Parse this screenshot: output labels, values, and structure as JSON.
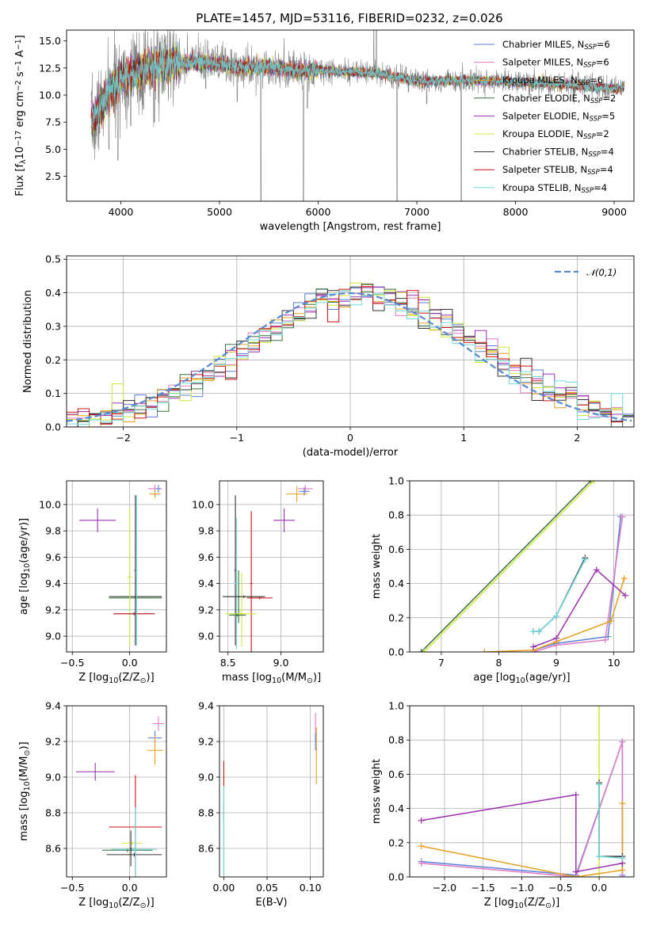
{
  "figure": {
    "title": "PLATE=1457, MJD=53116, FIBERID=0232, z=0.026"
  },
  "series": [
    {
      "name": "Chabrier MILES",
      "nssp": "6",
      "color": "#5b80d8"
    },
    {
      "name": "Salpeter MILES",
      "nssp": "6",
      "color": "#e07ac4"
    },
    {
      "name": "Kroupa MILES",
      "nssp": "6",
      "color": "#e6a020"
    },
    {
      "name": "Chabrier ELODIE",
      "nssp": "2",
      "color": "#3a6e3a"
    },
    {
      "name": "Salpeter ELODIE",
      "nssp": "5",
      "color": "#9a32b0"
    },
    {
      "name": "Kroupa ELODIE",
      "nssp": "2",
      "color": "#cce83a"
    },
    {
      "name": "Chabrier STELIB",
      "nssp": "4",
      "color": "#333333"
    },
    {
      "name": "Salpeter STELIB",
      "nssp": "4",
      "color": "#c81010"
    },
    {
      "name": "Kroupa STELIB",
      "nssp": "4",
      "color": "#70d8dc"
    }
  ],
  "chart_data": [
    {
      "id": "spectrum",
      "type": "line",
      "xlabel": "wavelength [Angstrom, rest frame]",
      "ylabel_parts": [
        "Flux [f",
        "λ",
        "10",
        "−17",
        " erg cm",
        "−2",
        " s",
        "−1",
        " A",
        "−1",
        "]"
      ],
      "xlim": [
        3450,
        9200
      ],
      "ylim": [
        0.2,
        16
      ],
      "xticks": [
        4000,
        5000,
        6000,
        7000,
        8000,
        9000
      ],
      "yticks": [
        2.5,
        5.0,
        7.5,
        10.0,
        12.5,
        15.0
      ],
      "ytick_labels": [
        "2.5",
        "5.0",
        "7.5",
        "10.0",
        "12.5",
        "15.0"
      ],
      "legend_suffix": "SSP",
      "legend_position": "upper right",
      "data_color": "#808080",
      "continuum": [
        [
          3700,
          7.4
        ],
        [
          3800,
          9.0
        ],
        [
          3900,
          10.5
        ],
        [
          4000,
          11.6
        ],
        [
          4200,
          12.3
        ],
        [
          4400,
          12.8
        ],
        [
          4600,
          13.0
        ],
        [
          4800,
          13.0
        ],
        [
          5000,
          12.9
        ],
        [
          5200,
          12.6
        ],
        [
          5500,
          12.6
        ],
        [
          5800,
          12.3
        ],
        [
          6000,
          12.3
        ],
        [
          6300,
          12.1
        ],
        [
          6600,
          12.0
        ],
        [
          7000,
          11.3
        ],
        [
          7300,
          11.3
        ],
        [
          7500,
          11.4
        ],
        [
          8000,
          11.2
        ],
        [
          8500,
          11.0
        ],
        [
          9000,
          10.6
        ],
        [
          9100,
          10.7
        ]
      ],
      "spikes": [
        [
          3730,
          6.6
        ],
        [
          3880,
          5.0
        ],
        [
          3970,
          4.0
        ],
        [
          4100,
          7.2
        ],
        [
          4230,
          8.7
        ],
        [
          4340,
          7.5
        ],
        [
          4860,
          10.6
        ],
        [
          5180,
          9.4
        ],
        [
          5420,
          0.2
        ],
        [
          5850,
          0.2
        ],
        [
          5890,
          8.8
        ],
        [
          6563,
          16.0
        ],
        [
          6590,
          16.0
        ],
        [
          6800,
          0.2
        ],
        [
          7100,
          9.2
        ],
        [
          7450,
          0.2
        ]
      ]
    },
    {
      "id": "residuals",
      "type": "histogram",
      "xlabel": "(data-model)/error",
      "ylabel": "Normed distribution",
      "xlim": [
        -2.5,
        2.5
      ],
      "ylim": [
        0,
        0.51
      ],
      "xticks": [
        -2,
        -1,
        0,
        1,
        2
      ],
      "xtick_labels": [
        "−2",
        "−1",
        "0",
        "1",
        "2"
      ],
      "yticks": [
        0,
        0.1,
        0.2,
        0.3,
        0.4,
        0.5
      ],
      "ytick_labels": [
        "0.0",
        "0.1",
        "0.2",
        "0.3",
        "0.4",
        "0.5"
      ],
      "bin_width": 0.1,
      "reference_curve": {
        "name": "𝒩(0,1)",
        "mean": 0,
        "sigma": 1,
        "color": "#5b8bd0"
      },
      "legend_position": "upper right"
    },
    {
      "id": "age_vs_z",
      "type": "errorbar",
      "xlabel_parts": [
        "Z [log",
        "10",
        "(Z/Z",
        "⊙",
        ")]"
      ],
      "ylabel_parts": [
        "age  [log",
        "10",
        "(age/yr)]"
      ],
      "xlim": [
        -0.55,
        0.32
      ],
      "ylim": [
        8.88,
        10.18
      ],
      "xticks": [
        -0.5,
        0.0
      ],
      "xtick_labels": [
        "−0.5",
        "0.0"
      ],
      "yticks": [
        9.0,
        9.2,
        9.4,
        9.6,
        9.8,
        10.0
      ],
      "ytick_labels": [
        "9.0",
        "9.2",
        "9.4",
        "9.6",
        "9.8",
        "10.0"
      ],
      "points": [
        {
          "series": 4,
          "x": -0.28,
          "xerr": 0.16,
          "y": 9.88,
          "yerr": 0.09
        },
        {
          "series": 1,
          "x": 0.22,
          "xerr": 0.06,
          "y": 10.12,
          "yerr": 0.03
        },
        {
          "series": 2,
          "x": 0.22,
          "xerr": 0.05,
          "y": 10.08,
          "yerr": 0.03
        },
        {
          "series": 0,
          "x": 0.25,
          "xerr": 0.02,
          "y": 10.12,
          "yerr": 0.03
        },
        {
          "series": 6,
          "x": 0.05,
          "xerr": 0.23,
          "y": 9.3,
          "yerr": 0.01
        },
        {
          "series": 3,
          "x": 0.05,
          "xerr": 0.23,
          "y": 9.29,
          "yerr": 0.01
        },
        {
          "series": 5,
          "x": 0.0,
          "xerr": 0.02,
          "y": 9.45,
          "yerr": 0.52
        },
        {
          "series": 8,
          "x": 0.03,
          "xerr": 0.17,
          "y": 9.17,
          "yerr": 0.01
        },
        {
          "series": 7,
          "x": 0.04,
          "xerr": 0.18,
          "y": 9.17,
          "yerr": 0.01
        },
        {
          "series": 6,
          "x": 0.05,
          "xerr": 0.01,
          "y": 9.5,
          "yerr": 0.57
        },
        {
          "series": 8,
          "x": 0.06,
          "xerr": 0.01,
          "y": 9.5,
          "yerr": 0.57
        }
      ]
    },
    {
      "id": "age_vs_mass",
      "type": "errorbar",
      "xlabel_parts": [
        "mass [log",
        "10",
        "(M/M",
        "⊙",
        ")]"
      ],
      "ylabel_parts": [],
      "xlim": [
        8.42,
        9.4
      ],
      "ylim": [
        8.88,
        10.18
      ],
      "xticks": [
        8.5,
        9.0
      ],
      "xtick_labels": [
        "8.5",
        "9.0"
      ],
      "yticks": [
        9.0,
        9.2,
        9.4,
        9.6,
        9.8,
        10.0
      ],
      "ytick_labels": [
        "9.0",
        "9.2",
        "9.4",
        "9.6",
        "9.8",
        "10.0"
      ],
      "points": [
        {
          "series": 4,
          "x": 9.03,
          "xerr": 0.1,
          "y": 9.88,
          "yerr": 0.09
        },
        {
          "series": 1,
          "x": 9.23,
          "xerr": 0.07,
          "y": 10.12,
          "yerr": 0.03
        },
        {
          "series": 2,
          "x": 9.15,
          "xerr": 0.1,
          "y": 10.08,
          "yerr": 0.06
        },
        {
          "series": 0,
          "x": 9.22,
          "xerr": 0.05,
          "y": 10.1,
          "yerr": 0.03
        },
        {
          "series": 6,
          "x": 8.57,
          "xerr": 0.01,
          "y": 9.5,
          "yerr": 0.57
        },
        {
          "series": 3,
          "x": 8.6,
          "xerr": 0.01,
          "y": 9.3,
          "yerr": 0.2
        },
        {
          "series": 5,
          "x": 8.63,
          "xerr": 0.01,
          "y": 9.2,
          "yerr": 0.28
        },
        {
          "series": 8,
          "x": 8.58,
          "xerr": 0.02,
          "y": 9.4,
          "yerr": 0.5
        },
        {
          "series": 7,
          "x": 8.72,
          "xerr": 0.01,
          "y": 9.4,
          "yerr": 0.55
        },
        {
          "series": 6,
          "x": 8.65,
          "xerr": 0.2,
          "y": 9.3,
          "yerr": 0.01
        },
        {
          "series": 7,
          "x": 8.8,
          "xerr": 0.12,
          "y": 9.29,
          "yerr": 0.01
        },
        {
          "series": 5,
          "x": 8.62,
          "xerr": 0.15,
          "y": 9.17,
          "yerr": 0.01
        },
        {
          "series": 3,
          "x": 8.59,
          "xerr": 0.08,
          "y": 9.16,
          "yerr": 0.01
        }
      ]
    },
    {
      "id": "massweight_vs_age",
      "type": "line",
      "xlabel_parts": [
        "age  [log",
        "10",
        "(age/yr)]"
      ],
      "ylabel": "mass weight",
      "xlim": [
        6.45,
        10.35
      ],
      "ylim": [
        0,
        1.0
      ],
      "xticks": [
        7,
        8,
        9,
        10
      ],
      "xtick_labels": [
        "7",
        "8",
        "9",
        "10"
      ],
      "yticks": [
        0,
        0.2,
        0.4,
        0.6,
        0.8,
        1.0
      ],
      "ytick_labels": [
        "0.0",
        "0.2",
        "0.4",
        "0.6",
        "0.8",
        "1.0"
      ],
      "lines": [
        {
          "series": 3,
          "points": [
            [
              6.65,
              0
            ],
            [
              9.6,
              1.0
            ]
          ]
        },
        {
          "series": 5,
          "points": [
            [
              6.7,
              0
            ],
            [
              9.65,
              1.0
            ]
          ]
        },
        {
          "series": 0,
          "points": [
            [
              8.6,
              0.01
            ],
            [
              9.0,
              0.05
            ],
            [
              9.9,
              0.09
            ],
            [
              10.12,
              0.79
            ]
          ]
        },
        {
          "series": 1,
          "points": [
            [
              8.6,
              0.0
            ],
            [
              9.0,
              0.04
            ],
            [
              9.85,
              0.07
            ],
            [
              10.15,
              0.79
            ]
          ]
        },
        {
          "series": 2,
          "points": [
            [
              7.75,
              0.0
            ],
            [
              8.6,
              0.01
            ],
            [
              9.0,
              0.06
            ],
            [
              9.95,
              0.18
            ],
            [
              10.18,
              0.43
            ]
          ]
        },
        {
          "series": 4,
          "points": [
            [
              8.6,
              0.03
            ],
            [
              9.0,
              0.08
            ],
            [
              9.7,
              0.48
            ],
            [
              10.2,
              0.33
            ]
          ]
        },
        {
          "series": 6,
          "points": [
            [
              8.6,
              0.12
            ],
            [
              8.7,
              0.12
            ],
            [
              9.0,
              0.21
            ],
            [
              9.5,
              0.55
            ]
          ]
        },
        {
          "series": 8,
          "points": [
            [
              8.6,
              0.12
            ],
            [
              8.7,
              0.12
            ],
            [
              9.0,
              0.21
            ],
            [
              9.5,
              0.54
            ]
          ]
        }
      ]
    },
    {
      "id": "mass_vs_z",
      "type": "errorbar",
      "xlabel_parts": [
        "Z [log",
        "10",
        "(Z/Z",
        "⊙",
        ")]"
      ],
      "ylabel_parts": [
        "mass [log",
        "10",
        "(M/M",
        "⊙",
        ")]"
      ],
      "xlim": [
        -0.55,
        0.32
      ],
      "ylim": [
        8.44,
        9.4
      ],
      "xticks": [
        -0.5,
        0.0
      ],
      "xtick_labels": [
        "−0.5",
        "0.0"
      ],
      "yticks": [
        8.6,
        8.8,
        9.0,
        9.2,
        9.4
      ],
      "ytick_labels": [
        "8.6",
        "8.8",
        "9.0",
        "9.2",
        "9.4"
      ],
      "points": [
        {
          "series": 4,
          "x": -0.3,
          "xerr": 0.17,
          "y": 9.03,
          "yerr": 0.05
        },
        {
          "series": 1,
          "x": 0.25,
          "xerr": 0.05,
          "y": 9.3,
          "yerr": 0.04
        },
        {
          "series": 0,
          "x": 0.22,
          "xerr": 0.06,
          "y": 9.22,
          "yerr": 0.04
        },
        {
          "series": 2,
          "x": 0.22,
          "xerr": 0.07,
          "y": 9.15,
          "yerr": 0.08
        },
        {
          "series": 7,
          "x": 0.05,
          "xerr": 0.23,
          "y": 8.72,
          "yerr": 0.29
        },
        {
          "series": 5,
          "x": 0.02,
          "xerr": 0.09,
          "y": 8.63,
          "yerr": 0.01
        },
        {
          "series": 3,
          "x": -0.02,
          "xerr": 0.22,
          "y": 8.59,
          "yerr": 0.01
        },
        {
          "series": 8,
          "x": 0.04,
          "xerr": 0.2,
          "y": 8.595,
          "yerr": 0.01
        },
        {
          "series": 6,
          "x": 0.04,
          "xerr": 0.24,
          "y": 8.565,
          "yerr": 0.01
        },
        {
          "series": 8,
          "x": 0.05,
          "xerr": 0.01,
          "y": 8.63,
          "yerr": 0.2
        },
        {
          "series": 6,
          "x": 0.01,
          "xerr": 0.01,
          "y": 8.6,
          "yerr": 0.1
        }
      ]
    },
    {
      "id": "mass_vs_ebv",
      "type": "errorbar",
      "xlabel": "E(B-V)",
      "xlim": [
        -0.005,
        0.115
      ],
      "ylim": [
        8.44,
        9.4
      ],
      "xticks": [
        0.0,
        0.05,
        0.1
      ],
      "xtick_labels": [
        "0.00",
        "0.05",
        "0.10"
      ],
      "yticks": [
        8.6,
        8.8,
        9.0,
        9.2,
        9.4
      ],
      "ytick_labels": [
        "8.6",
        "8.8",
        "9.0",
        "9.2",
        "9.4"
      ],
      "points": [
        {
          "series": 7,
          "x": 0.0,
          "xerr": 0.0005,
          "y": 8.92,
          "yerr": 0.17
        },
        {
          "series": 6,
          "x": 0.0,
          "xerr": 0.0005,
          "y": 8.65,
          "yerr": 0.2
        },
        {
          "series": 8,
          "x": 0.0,
          "xerr": 0.0005,
          "y": 8.7,
          "yerr": 0.25
        },
        {
          "series": 1,
          "x": 0.106,
          "xerr": 0.0005,
          "y": 9.28,
          "yerr": 0.08
        },
        {
          "series": 2,
          "x": 0.107,
          "xerr": 0.0005,
          "y": 9.12,
          "yerr": 0.16
        },
        {
          "series": 0,
          "x": 0.106,
          "xerr": 0.0005,
          "y": 9.2,
          "yerr": 0.05
        }
      ]
    },
    {
      "id": "massweight_vs_z",
      "type": "line",
      "xlabel_parts": [
        "Z [log",
        "10",
        "(Z/Z",
        "⊙",
        ")]"
      ],
      "ylabel": "mass weight",
      "xlim": [
        -2.45,
        0.45
      ],
      "ylim": [
        0,
        1.0
      ],
      "xticks": [
        -2.0,
        -1.5,
        -1.0,
        -0.5,
        0.0
      ],
      "xtick_labels": [
        "−2.0",
        "−1.5",
        "−1.0",
        "−0.5",
        "0.0"
      ],
      "yticks": [
        0,
        0.2,
        0.4,
        0.6,
        0.8,
        1.0
      ],
      "ytick_labels": [
        "0.0",
        "0.2",
        "0.4",
        "0.6",
        "0.8",
        "1.0"
      ],
      "lines": [
        {
          "series": 5,
          "points": [
            [
              0,
              0
            ],
            [
              0,
              1.0
            ]
          ]
        },
        {
          "series": 0,
          "points": [
            [
              -2.3,
              0.09
            ],
            [
              -0.3,
              0.01
            ],
            [
              0.3,
              0.79
            ],
            [
              0.3,
              0.01
            ]
          ]
        },
        {
          "series": 1,
          "points": [
            [
              -2.3,
              0.08
            ],
            [
              -0.3,
              0.0
            ],
            [
              0.3,
              0.79
            ],
            [
              0.3,
              0.0
            ]
          ]
        },
        {
          "series": 2,
          "points": [
            [
              -2.3,
              0.18
            ],
            [
              -0.3,
              0.0
            ],
            [
              0.3,
              0.04
            ],
            [
              0.3,
              0.43
            ]
          ]
        },
        {
          "series": 4,
          "points": [
            [
              -2.3,
              0.33
            ],
            [
              -0.3,
              0.48
            ],
            [
              -0.3,
              0.03
            ],
            [
              0.3,
              0.08
            ]
          ]
        },
        {
          "series": 6,
          "points": [
            [
              0,
              0.55
            ],
            [
              0,
              0.12
            ],
            [
              0.3,
              0.12
            ]
          ]
        },
        {
          "series": 8,
          "points": [
            [
              0,
              0.54
            ],
            [
              0,
              0.12
            ],
            [
              0.3,
              0.11
            ]
          ]
        }
      ]
    }
  ]
}
